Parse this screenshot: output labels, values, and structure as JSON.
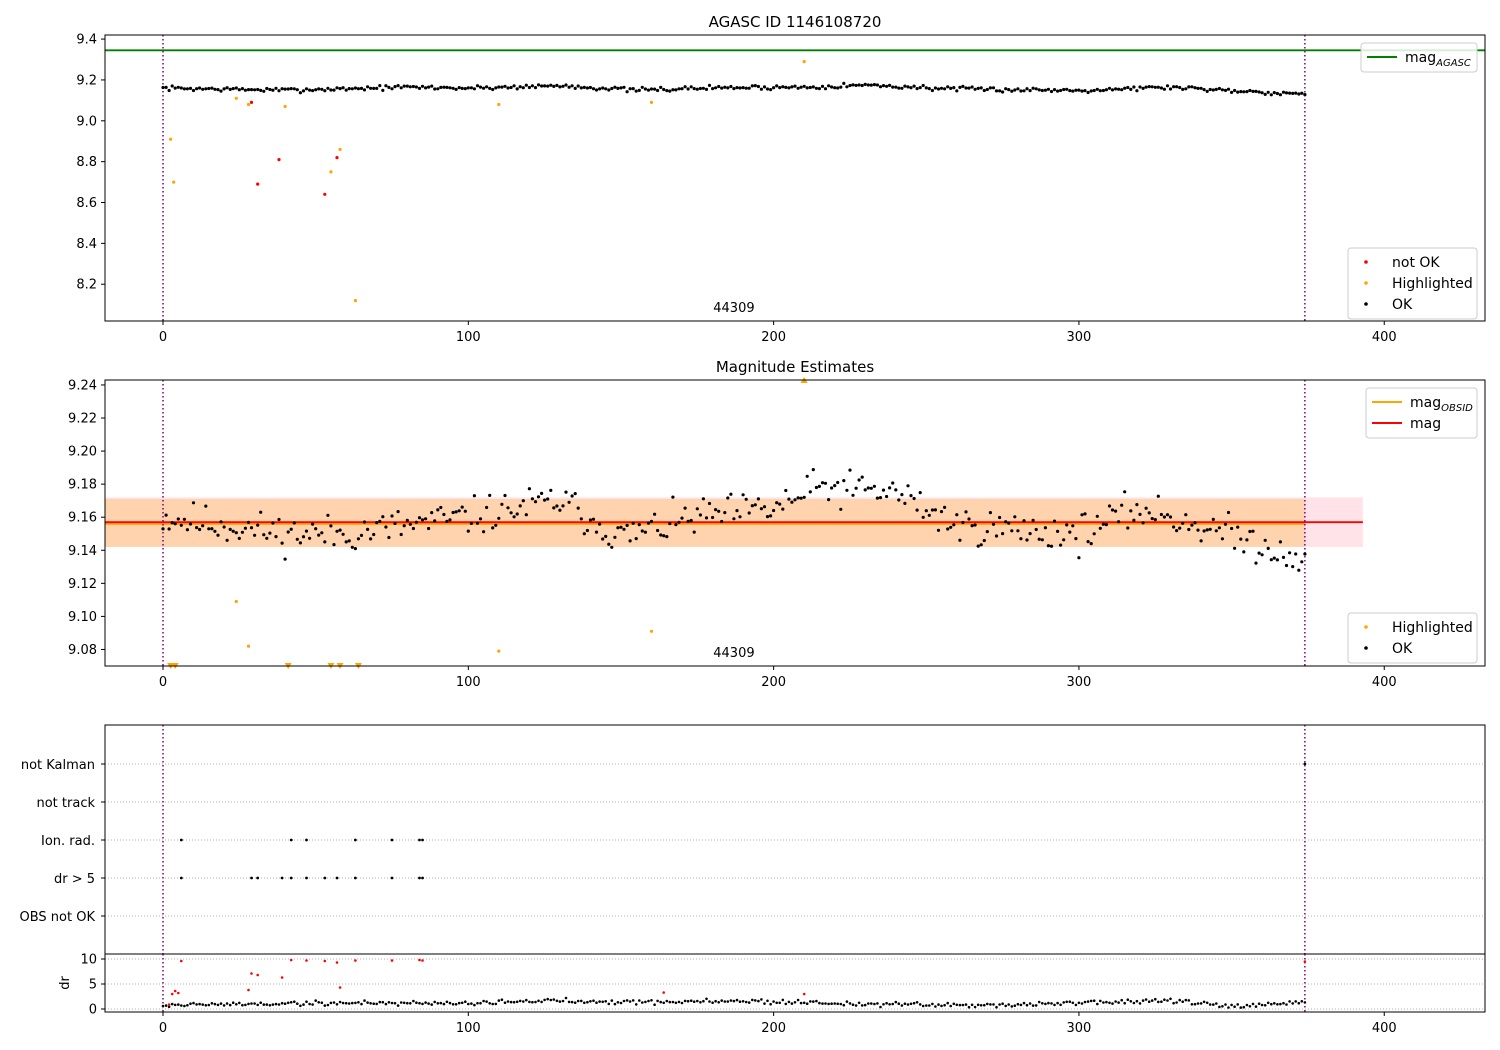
{
  "chart_data": [
    {
      "type": "scatter",
      "title": "AGASC ID 1146108720",
      "xlim": [
        -19,
        433
      ],
      "ylim": [
        8.02,
        9.42
      ],
      "xticks": [
        0,
        100,
        200,
        300,
        400
      ],
      "yticks": [
        8.2,
        8.4,
        8.6,
        8.8,
        9.0,
        9.2,
        9.4
      ],
      "grid": false,
      "annotation": "44309",
      "annotation_x": 187,
      "vlines": [
        0,
        374
      ],
      "hlines": [
        {
          "name": "mag_AGASC",
          "y": 9.345,
          "color": "#008000"
        }
      ],
      "legend_top": {
        "placement": "top-right",
        "entries": [
          {
            "label": "mag",
            "sub": "AGASC",
            "color": "#008000",
            "kind": "line"
          }
        ]
      },
      "legend_bottom": {
        "placement": "bottom-right",
        "entries": [
          {
            "label": "not OK",
            "color": "#ff0000",
            "kind": "dot"
          },
          {
            "label": "Highlighted",
            "color": "#ffa500",
            "kind": "dot"
          },
          {
            "label": "OK",
            "color": "#000000",
            "kind": "dot"
          }
        ]
      },
      "series": [
        {
          "name": "OK",
          "color": "#000000",
          "generated": {
            "x0": 0,
            "x1": 374,
            "base": [
              [
                0,
                9.16
              ],
              [
                40,
                9.15
              ],
              [
                80,
                9.165
              ],
              [
                100,
                9.16
              ],
              [
                130,
                9.172
              ],
              [
                155,
                9.15
              ],
              [
                180,
                9.162
              ],
              [
                210,
                9.165
              ],
              [
                230,
                9.175
              ],
              [
                260,
                9.155
              ],
              [
                300,
                9.15
              ],
              [
                330,
                9.165
              ],
              [
                374,
                9.13
              ]
            ],
            "noise": 0.008,
            "seed": 7
          }
        },
        {
          "name": "Highlighted",
          "color": "#ffa500",
          "points": [
            [
              2.5,
              8.91
            ],
            [
              3.5,
              8.7
            ],
            [
              24,
              9.11
            ],
            [
              28,
              9.08
            ],
            [
              40,
              9.07
            ],
            [
              55,
              8.75
            ],
            [
              58,
              8.86
            ],
            [
              63,
              8.12
            ],
            [
              110,
              9.08
            ],
            [
              160,
              9.09
            ],
            [
              210,
              9.29
            ]
          ]
        },
        {
          "name": "not OK",
          "color": "#ff0000",
          "points": [
            [
              29,
              9.09
            ],
            [
              31,
              8.69
            ],
            [
              38,
              8.81
            ],
            [
              53,
              8.64
            ],
            [
              57,
              8.82
            ]
          ]
        }
      ]
    },
    {
      "type": "scatter",
      "title": "Magnitude Estimates",
      "xlim": [
        -19,
        433
      ],
      "ylim": [
        9.07,
        9.243
      ],
      "xticks": [
        0,
        100,
        200,
        300,
        400
      ],
      "yticks": [
        9.08,
        9.1,
        9.12,
        9.14,
        9.16,
        9.18,
        9.2,
        9.22,
        9.24
      ],
      "grid": false,
      "annotation": "44309",
      "annotation_x": 187,
      "vlines": [
        0,
        374
      ],
      "bands": [
        {
          "x0": -19,
          "x1": 393,
          "y0": 9.142,
          "y1": 9.172,
          "color": "#ffc0cb",
          "opacity": 0.45
        },
        {
          "x0": -19,
          "x1": 374,
          "y0": 9.142,
          "y1": 9.171,
          "color": "#ffa500",
          "opacity": 0.25
        }
      ],
      "hlines": [
        {
          "name": "mag_OBSID",
          "y": 9.1563,
          "x0": -19,
          "x1": 374,
          "color": "#ffa500",
          "width": 3
        },
        {
          "name": "mag",
          "y": 9.157,
          "x0": -19,
          "x1": 393,
          "color": "#ff0000",
          "width": 1.8
        }
      ],
      "legend_top": {
        "placement": "top-right",
        "entries": [
          {
            "label": "mag",
            "sub": "OBSID",
            "color": "#ffa500",
            "kind": "line"
          },
          {
            "label": "mag",
            "sub": "",
            "color": "#ff0000",
            "kind": "line"
          }
        ]
      },
      "legend_bottom": {
        "placement": "bottom-right",
        "entries": [
          {
            "label": "Highlighted",
            "color": "#ffa500",
            "kind": "dot"
          },
          {
            "label": "OK",
            "color": "#000000",
            "kind": "dot"
          }
        ]
      },
      "series": [
        {
          "name": "OK",
          "color": "#000000",
          "generated": {
            "x0": 0,
            "x1": 374,
            "base": [
              [
                0,
                9.16
              ],
              [
                20,
                9.155
              ],
              [
                40,
                9.15
              ],
              [
                60,
                9.15
              ],
              [
                80,
                9.155
              ],
              [
                100,
                9.16
              ],
              [
                130,
                9.17
              ],
              [
                150,
                9.148
              ],
              [
                175,
                9.16
              ],
              [
                200,
                9.165
              ],
              [
                215,
                9.178
              ],
              [
                240,
                9.175
              ],
              [
                260,
                9.155
              ],
              [
                300,
                9.15
              ],
              [
                320,
                9.165
              ],
              [
                340,
                9.155
              ],
              [
                374,
                9.135
              ]
            ],
            "noise": 0.008,
            "seed": 11
          }
        },
        {
          "name": "Highlighted",
          "color": "#ffa500",
          "points": [
            [
              24,
              9.109
            ],
            [
              28,
              9.082
            ],
            [
              110,
              9.079
            ],
            [
              160,
              9.091
            ]
          ]
        },
        {
          "name": "Highlighted (off-scale)",
          "color": "#ffa500",
          "markers": "triangle",
          "points": [
            [
              2.5,
              9.07,
              "down"
            ],
            [
              4,
              9.07,
              "down"
            ],
            [
              41,
              9.07,
              "down"
            ],
            [
              55,
              9.07,
              "down"
            ],
            [
              58,
              9.07,
              "down"
            ],
            [
              64,
              9.07,
              "down"
            ],
            [
              210,
              9.243,
              "up"
            ]
          ]
        }
      ]
    },
    {
      "type": "scatter",
      "title": "",
      "xlim": [
        -19,
        433
      ],
      "categories": [
        "OBS not OK",
        "dr > 5",
        "Ion. rad.",
        "not track",
        "not Kalman"
      ],
      "xticks": [
        0,
        100,
        200,
        300,
        400
      ],
      "vlines": [
        0,
        374
      ],
      "flags": {
        "not Kalman": [
          374
        ],
        "not track": [],
        "Ion. rad.": [
          6,
          42,
          47,
          63,
          75,
          84,
          85
        ],
        "dr > 5": [
          6,
          29,
          31,
          39,
          42,
          47,
          53,
          57,
          63,
          75,
          84,
          85
        ],
        "OBS not OK": []
      }
    },
    {
      "type": "scatter",
      "title": "",
      "ylabel": "dr",
      "xlim": [
        -19,
        433
      ],
      "ylim": [
        -0.6,
        11
      ],
      "yticks": [
        0,
        5,
        10
      ],
      "xticks": [
        0,
        100,
        200,
        300,
        400
      ],
      "vlines": [
        0,
        374
      ],
      "series": [
        {
          "name": "dr OK",
          "color": "#000000",
          "generated": {
            "x0": 0,
            "x1": 374,
            "base": [
              [
                0,
                0.8
              ],
              [
                30,
                1.0
              ],
              [
                60,
                1.2
              ],
              [
                100,
                1.2
              ],
              [
                130,
                1.7
              ],
              [
                160,
                1.4
              ],
              [
                190,
                1.6
              ],
              [
                230,
                1.0
              ],
              [
                260,
                0.7
              ],
              [
                300,
                1.2
              ],
              [
                330,
                1.7
              ],
              [
                350,
                0.4
              ],
              [
                374,
                1.3
              ]
            ],
            "noise": 0.35,
            "seed": 19
          }
        },
        {
          "name": "dr not OK",
          "color": "#ff0000",
          "points": [
            [
              2,
              0.9
            ],
            [
              3,
              3.0
            ],
            [
              4,
              3.6
            ],
            [
              5,
              3.2
            ],
            [
              6,
              9.6
            ],
            [
              28,
              3.8
            ],
            [
              29,
              7.1
            ],
            [
              31,
              6.8
            ],
            [
              39,
              6.3
            ],
            [
              42,
              9.8
            ],
            [
              47,
              9.7
            ],
            [
              53,
              9.6
            ],
            [
              57,
              9.3
            ],
            [
              58,
              4.3
            ],
            [
              63,
              9.7
            ],
            [
              75,
              9.7
            ],
            [
              84,
              9.8
            ],
            [
              85,
              9.7
            ],
            [
              164,
              3.3
            ],
            [
              210,
              3.0
            ],
            [
              374,
              9.5
            ]
          ]
        }
      ]
    }
  ]
}
